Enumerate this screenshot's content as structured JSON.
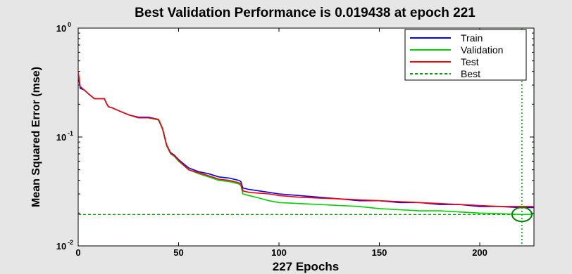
{
  "chart_data": {
    "type": "line",
    "title": "Best Validation Performance is 0.019438 at epoch 221",
    "xlabel": "227 Epochs",
    "ylabel": "Mean Squared Error  (mse)",
    "xlim": [
      0,
      227
    ],
    "ylim": [
      0.01,
      1
    ],
    "yscale": "log",
    "x_ticks": [
      0,
      50,
      100,
      150,
      200
    ],
    "y_ticks": [
      {
        "base": "10",
        "exp": "0",
        "value": 1
      },
      {
        "base": "10",
        "exp": "-1",
        "value": 0.1
      },
      {
        "base": "10",
        "exp": "-2",
        "value": 0.01
      }
    ],
    "legend_position": "top-right",
    "best": {
      "epoch": 221,
      "value": 0.019438
    },
    "series": [
      {
        "name": "Train",
        "color": "#0000ff",
        "style": "solid",
        "x": [
          0,
          1,
          3,
          5,
          8,
          10,
          13,
          14,
          15,
          17,
          20,
          25,
          30,
          35,
          40,
          42,
          44,
          46,
          48,
          50,
          55,
          60,
          65,
          70,
          75,
          80,
          81,
          82,
          85,
          90,
          95,
          100,
          110,
          120,
          130,
          140,
          150,
          160,
          170,
          180,
          190,
          200,
          210,
          220,
          227
        ],
        "y": [
          0.38,
          0.28,
          0.27,
          0.25,
          0.225,
          0.225,
          0.225,
          0.205,
          0.19,
          0.185,
          0.175,
          0.16,
          0.152,
          0.152,
          0.145,
          0.12,
          0.085,
          0.072,
          0.068,
          0.062,
          0.052,
          0.048,
          0.046,
          0.043,
          0.042,
          0.04,
          0.039,
          0.034,
          0.033,
          0.032,
          0.031,
          0.03,
          0.029,
          0.028,
          0.027,
          0.026,
          0.026,
          0.025,
          0.025,
          0.024,
          0.024,
          0.023,
          0.023,
          0.0225,
          0.0225
        ]
      },
      {
        "name": "Validation",
        "color": "#00d000",
        "style": "solid",
        "x": [
          0,
          1,
          3,
          5,
          8,
          10,
          13,
          14,
          15,
          17,
          20,
          25,
          30,
          35,
          40,
          42,
          44,
          46,
          48,
          50,
          55,
          60,
          65,
          70,
          75,
          80,
          81,
          82,
          85,
          90,
          95,
          100,
          110,
          120,
          130,
          140,
          150,
          160,
          170,
          180,
          190,
          200,
          210,
          215,
          221,
          227
        ],
        "y": [
          0.37,
          0.28,
          0.27,
          0.25,
          0.225,
          0.225,
          0.225,
          0.205,
          0.19,
          0.185,
          0.175,
          0.16,
          0.15,
          0.15,
          0.143,
          0.118,
          0.083,
          0.07,
          0.066,
          0.06,
          0.05,
          0.046,
          0.043,
          0.04,
          0.039,
          0.037,
          0.036,
          0.03,
          0.029,
          0.0275,
          0.026,
          0.025,
          0.0245,
          0.024,
          0.0235,
          0.023,
          0.022,
          0.0215,
          0.021,
          0.021,
          0.0205,
          0.02,
          0.0198,
          0.0196,
          0.019438,
          0.0195
        ]
      },
      {
        "name": "Test",
        "color": "#ff0000",
        "style": "solid",
        "x": [
          0,
          1,
          3,
          5,
          8,
          10,
          13,
          14,
          15,
          17,
          20,
          25,
          30,
          35,
          40,
          42,
          44,
          46,
          48,
          50,
          55,
          60,
          65,
          70,
          75,
          80,
          81,
          82,
          85,
          90,
          95,
          100,
          110,
          120,
          130,
          140,
          150,
          160,
          170,
          180,
          190,
          200,
          210,
          220,
          227
        ],
        "y": [
          0.4,
          0.29,
          0.27,
          0.25,
          0.225,
          0.225,
          0.225,
          0.205,
          0.19,
          0.185,
          0.175,
          0.16,
          0.15,
          0.15,
          0.145,
          0.12,
          0.085,
          0.071,
          0.067,
          0.061,
          0.05,
          0.047,
          0.044,
          0.041,
          0.04,
          0.038,
          0.037,
          0.032,
          0.031,
          0.0305,
          0.03,
          0.029,
          0.028,
          0.0275,
          0.027,
          0.0265,
          0.026,
          0.0255,
          0.025,
          0.0245,
          0.024,
          0.0235,
          0.023,
          0.023,
          0.023
        ]
      },
      {
        "name": "Best",
        "color": "#00a000",
        "style": "dashed",
        "x": [
          0,
          221
        ],
        "y": [
          0.019438,
          0.019438
        ]
      }
    ]
  }
}
